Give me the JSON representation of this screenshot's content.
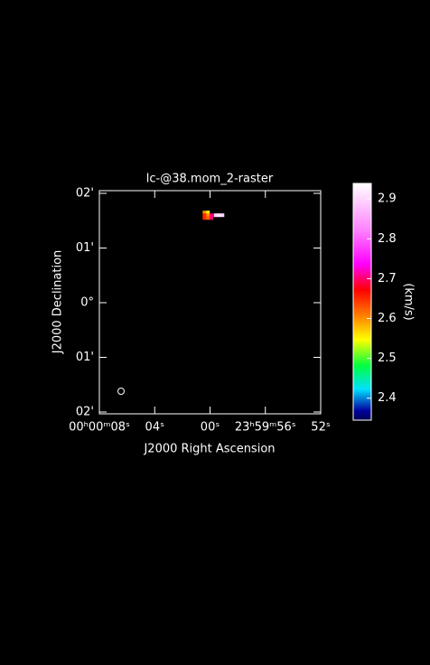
{
  "chart_data": {
    "type": "raster",
    "title": "lc-@38.mom_2-raster",
    "x_label": "J2000 Right Ascension",
    "y_label": "J2000 Declination",
    "xlim": [
      8,
      -8
    ],
    "xticks": [
      {
        "value": 8,
        "label": "00ʰ00ᵐ08ˢ"
      },
      {
        "value": 4,
        "label": "04ˢ"
      },
      {
        "value": 0,
        "label": "00ˢ"
      },
      {
        "value": -4,
        "label": "23ʰ59ᵐ56ˢ"
      },
      {
        "value": -8,
        "label": "52ˢ"
      }
    ],
    "ylim": [
      -2,
      2
    ],
    "yticks": [
      {
        "value": 2,
        "label": "02'"
      },
      {
        "value": 1,
        "label": "01'"
      },
      {
        "value": 0,
        "label": "0°"
      },
      {
        "value": -1,
        "label": "01'"
      },
      {
        "value": -2,
        "label": "02'"
      }
    ],
    "x": [
      0.4,
      0.15,
      0.15,
      0.4,
      -0.1,
      0.4,
      0.15,
      -0.1,
      -0.4,
      -0.65,
      -0.9
    ],
    "y": [
      1.65,
      1.65,
      1.6,
      1.6,
      1.6,
      1.55,
      1.55,
      1.55,
      1.6,
      1.6,
      1.6
    ],
    "values": [
      2.6,
      2.55,
      2.6,
      2.65,
      2.7,
      2.65,
      2.62,
      2.7,
      2.9,
      2.92,
      2.9
    ],
    "colorbar_label": "(km/s)",
    "clim": [
      2.345,
      2.939
    ],
    "cticks": [
      2.4,
      2.5,
      2.6,
      2.7,
      2.8,
      2.9
    ]
  }
}
